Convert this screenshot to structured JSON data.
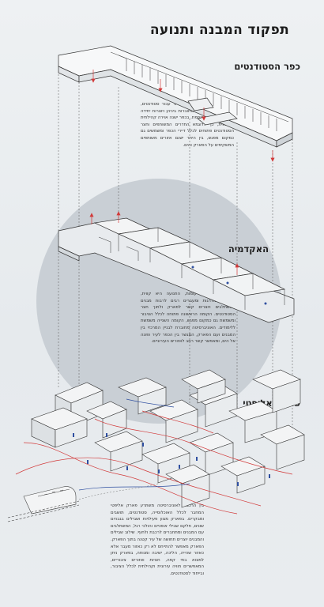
{
  "title": "תפקוד המבנה ותנועה",
  "colors": {
    "background": "#e9edf0",
    "circle": "#c9cfd5",
    "accent_red": "#d23a3a",
    "accent_blue": "#2f4fa0",
    "line": "#333333"
  },
  "sections": {
    "students_village": {
      "heading": "כפר הסטודנטים",
      "paragraph": "בגג המבנה ישנן 54 יחידות דיור עבור סטודנטים, כאשר כל שתי יחידות מחוברות ביניהן ויוצרות יחידה אחת של דירה משותפת. בכפר ישנה אוירה קהילתית ושיתופית, כך לדוגמא החדרים המשותפים וחצר הסטודנטים פתוחים לכלל דיירי הכפר ומשמשים גם כמקום מפגש, בין היתר ישנם אזורים משותפים המשקיפים על הפארק והים."
    },
    "academy": {
      "heading": "האקדמיה",
      "paragraph": "לאוניברסיטה שתי קומות, התנועה היא קווית, ומסביבה מדרגות ומעברים רבים לרבות מבנים המשתלבים ויוצרים קשר לפארק ולתוך חצר הסטודנטים. הקומה הראשונה פתוחה לכלל הציבור ומשמשת גם כמקום מפגש, הקומה השנייה משמשת ללימודים. האוניברסיטה מחוברת לבניין המרכזי בין המבנים ועם הפארק, המגשר בין הכפר לעיר ופונה אל הים, ומאפשר קשר רחב לאזורים העירוניים."
    },
    "elliptical_park": {
      "heading": "פארק אליפטי",
      "paragraph": "בין הרכבת לאוניברסיטה משתרע פארק אליפטי המחבר לכלל האוכלוסייה, סטודנטים, תושבים ומבקרים. בפארק מגוון פעילויות ושבילים בגבהים שונים, חלקם שבילי אופניים והולכי רגל, המשתלבים עם המבנים ומתחברים לרכבת ולחוף. שילוב שבילים והמבנים יוצרים תחושה של עיר קטנה בתוך הפארק. הפארק מאפשר להתייחס לא רק כאזור מעבר אלא כאזור שהייה, הליכה, ישיבה ומנוחה, בפארק ניתן למצוא בתי קפה, חנויות ואזורים ציבוריים, המאפשרים חוויה עירונית וקהילתית לכלל הציבור, ובייחוד לסטודנטים."
    }
  },
  "icon": {
    "train": "train-icon",
    "person": "person-icon"
  }
}
